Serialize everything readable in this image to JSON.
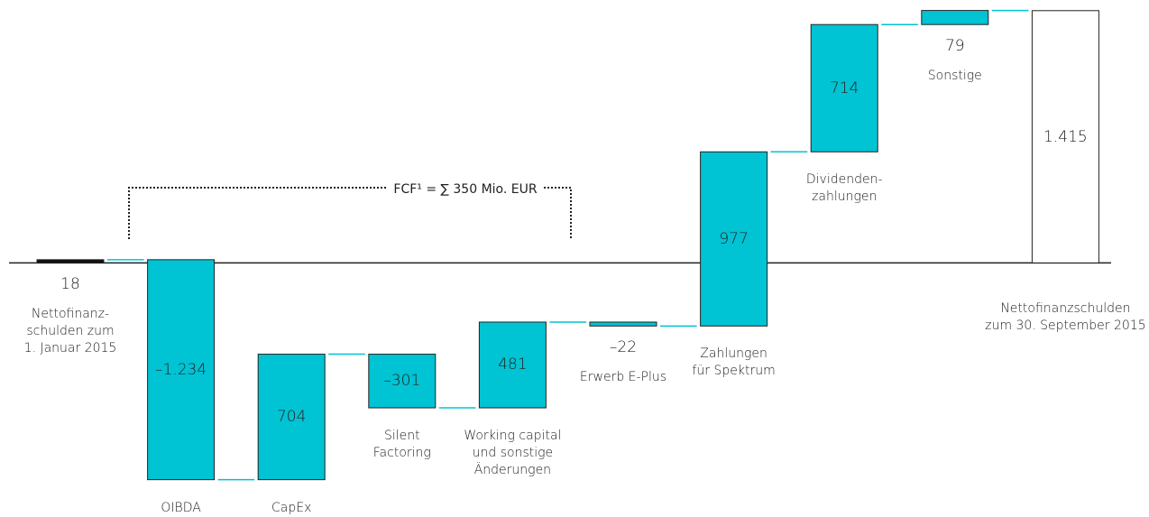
{
  "chart_data": {
    "type": "waterfall",
    "annotation": "FCF¹ = ∑ 350 Mio. EUR",
    "categories": [
      "Nettofinanz-\nschulden zum\n1. Januar 2015",
      "OIBDA",
      "CapEx",
      "Silent\nFactoring",
      "Working capital\nund sonstige\nÄnderungen",
      "Erwerb E-Plus",
      "Zahlungen\nfür Spektrum",
      "Dividenden-\nzahlungen",
      "Sonstige",
      "Nettofinanzschulden\nzum 30. September 2015"
    ],
    "values": [
      18,
      -1234,
      704,
      -301,
      481,
      -22,
      977,
      714,
      79,
      1415
    ],
    "value_labels": [
      "18",
      "–1.234",
      "704",
      "–301",
      "481",
      "–22",
      "977",
      "714",
      "79",
      "1.415"
    ],
    "total": [
      true,
      false,
      false,
      false,
      false,
      false,
      false,
      false,
      false,
      true
    ],
    "color": "#00c3d3",
    "ylim": [
      -1400,
      1500
    ]
  }
}
